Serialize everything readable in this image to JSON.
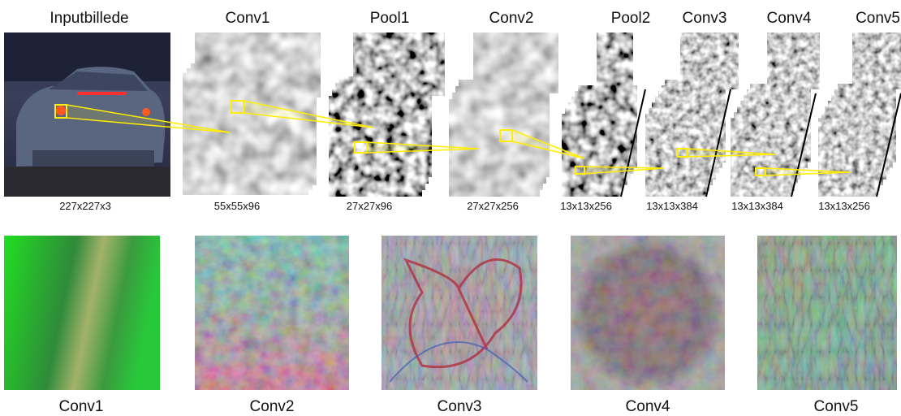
{
  "layers": [
    {
      "name": "Inputbillede",
      "size": "227x227x3"
    },
    {
      "name": "Conv1",
      "size": "55x55x96"
    },
    {
      "name": "Pool1",
      "size": "27x27x96"
    },
    {
      "name": "Conv2",
      "size": "27x27x256"
    },
    {
      "name": "Pool2",
      "size": "13x13x256"
    },
    {
      "name": "Conv3",
      "size": "13x13x384"
    },
    {
      "name": "Conv4",
      "size": "13x13x384"
    },
    {
      "name": "Conv5",
      "size": "13x13x256"
    }
  ],
  "visualizations": [
    {
      "label": "Conv1"
    },
    {
      "label": "Conv2"
    },
    {
      "label": "Conv3"
    },
    {
      "label": "Conv4"
    },
    {
      "label": "Conv5"
    }
  ]
}
